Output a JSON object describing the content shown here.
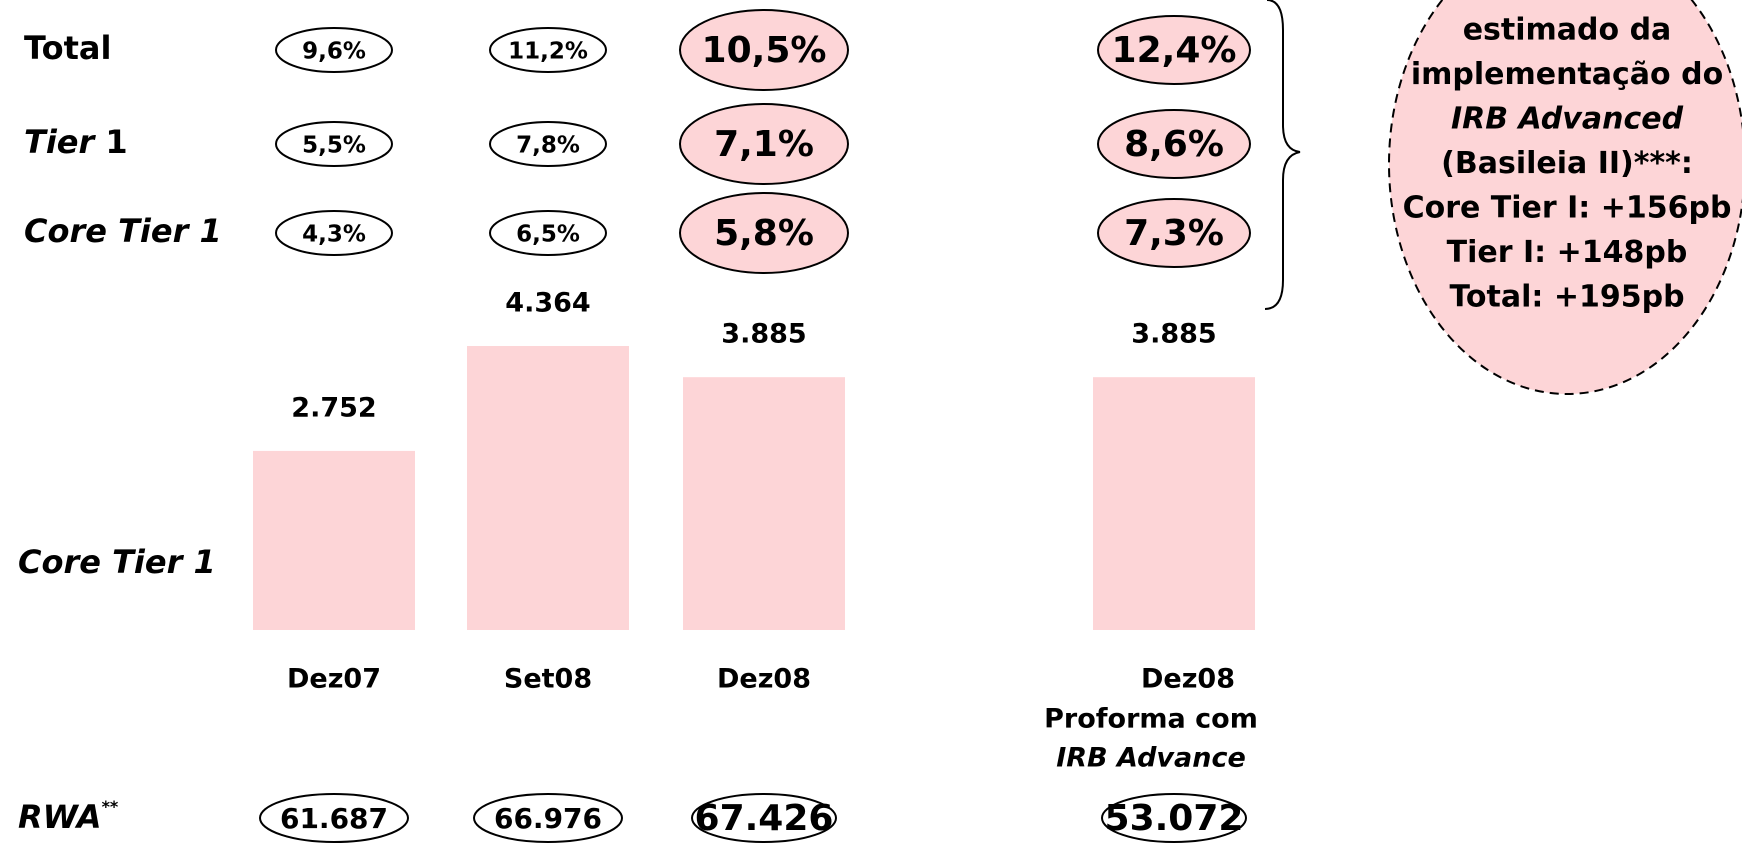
{
  "chart_data": {
    "type": "bar",
    "categories": [
      "Dez07",
      "Set08",
      "Dez08",
      "Dez08"
    ],
    "proforma_label": [
      "Proforma com",
      "IRB Advance"
    ],
    "values": [
      2752,
      4364,
      3885,
      3885
    ],
    "value_labels": [
      "2.752",
      "4.364",
      "3.885",
      "3.885"
    ],
    "color": "#fdd5d7",
    "bar_label": "Core Tier 1",
    "ratio_rows": [
      {
        "label_parts": [
          "Total"
        ],
        "values": [
          9.6,
          11.2,
          10.5,
          12.4
        ],
        "value_labels": [
          "9,6%",
          "11,2%",
          "10,5%",
          "12,4%"
        ]
      },
      {
        "label_parts": [
          "Tier",
          "1"
        ],
        "values": [
          5.5,
          7.8,
          7.1,
          8.6
        ],
        "value_labels": [
          "5,5%",
          "7,8%",
          "7,1%",
          "8,6%"
        ]
      },
      {
        "label_parts": [
          "Core Tier 1"
        ],
        "values": [
          4.3,
          6.5,
          5.8,
          7.3
        ],
        "value_labels": [
          "4,3%",
          "6,5%",
          "5,8%",
          "7,3%"
        ]
      }
    ],
    "rwa": {
      "label_parts": [
        "RWA",
        "**"
      ],
      "values": [
        61687,
        66976,
        67426,
        53072
      ],
      "value_labels": [
        "61.687",
        "66.976",
        "67.426",
        "53.072"
      ]
    },
    "callout": [
      "estimado da",
      "implementação do",
      "IRB Advanced",
      "(Basileia II)***:",
      "Core Tier I: +156pb",
      "Tier I: +148pb",
      "Total: +195pb"
    ]
  }
}
